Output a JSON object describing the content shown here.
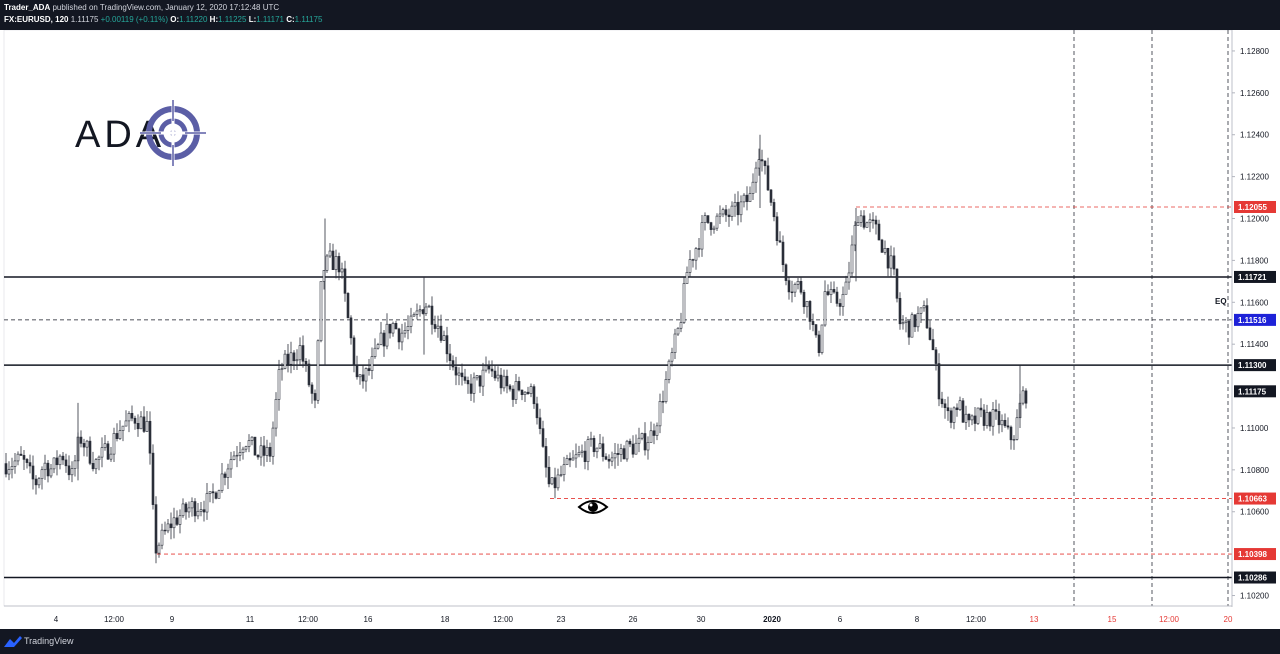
{
  "header": {
    "publisher": "Trader_ADA",
    "published_text": "published on TradingView.com, January 12, 2020 17:12:48 UTC",
    "symbol": "FX:EURUSD, 120",
    "last": "1.11175",
    "change": "+0.00119 (+0.11%)",
    "o_label": "O:",
    "o_value": "1.11220",
    "h_label": "H:",
    "h_value": "1.11225",
    "l_label": "L:",
    "l_value": "1.11171",
    "c_label": "C:",
    "c_value": "1.11175"
  },
  "footer": {
    "brand": "TradingView"
  },
  "logo": {
    "text": "ADA",
    "icon": "crosshair-target-icon",
    "color": "#5b5ea6"
  },
  "colors": {
    "up": "#26a69a",
    "down": "#ef5350",
    "candle": "#2a2e39",
    "red_level": "#e53935",
    "blue_level": "#1e22d8",
    "dark_bg": "#131722"
  },
  "chart_data": {
    "type": "candlestick",
    "symbol": "FX:EURUSD",
    "interval": "120",
    "ylim": [
      1.1015,
      1.129
    ],
    "y_ticks": [
      "1.12800",
      "1.12600",
      "1.12400",
      "1.12200",
      "1.12000",
      "1.11800",
      "1.11600",
      "1.11400",
      "1.11000",
      "1.10800",
      "1.10600",
      "1.10200"
    ],
    "x_ticks": [
      "4",
      "12:00",
      "9",
      "11",
      "12:00",
      "16",
      "18",
      "12:00",
      "23",
      "26",
      "30",
      "2020",
      "6",
      "8",
      "12:00",
      "13",
      "15",
      "12:00",
      "20"
    ],
    "ohlc_anchors_close": [
      [
        0,
        1.1083
      ],
      [
        10,
        1.1083
      ],
      [
        22,
        1.1085
      ],
      [
        35,
        1.1073
      ],
      [
        44,
        1.1083
      ],
      [
        52,
        1.108
      ],
      [
        62,
        1.1088
      ],
      [
        72,
        1.1077
      ],
      [
        80,
        1.1096
      ],
      [
        95,
        1.1083
      ],
      [
        108,
        1.109
      ],
      [
        120,
        1.11
      ],
      [
        135,
        1.1105
      ],
      [
        148,
        1.1101
      ],
      [
        155,
        1.1042
      ],
      [
        172,
        1.1055
      ],
      [
        190,
        1.1062
      ],
      [
        210,
        1.1065
      ],
      [
        230,
        1.1085
      ],
      [
        245,
        1.1095
      ],
      [
        258,
        1.1087
      ],
      [
        270,
        1.1088
      ],
      [
        280,
        1.1128
      ],
      [
        300,
        1.1138
      ],
      [
        315,
        1.111
      ],
      [
        322,
        1.1175
      ],
      [
        330,
        1.118
      ],
      [
        340,
        1.1178
      ],
      [
        350,
        1.1145
      ],
      [
        358,
        1.112
      ],
      [
        370,
        1.1128
      ],
      [
        380,
        1.114
      ],
      [
        392,
        1.115
      ],
      [
        400,
        1.1145
      ],
      [
        410,
        1.1148
      ],
      [
        425,
        1.116
      ],
      [
        440,
        1.1148
      ],
      [
        452,
        1.1132
      ],
      [
        465,
        1.1118
      ],
      [
        478,
        1.1122
      ],
      [
        490,
        1.1128
      ],
      [
        500,
        1.1122
      ],
      [
        512,
        1.1117
      ],
      [
        520,
        1.112
      ],
      [
        535,
        1.1115
      ],
      [
        542,
        1.109
      ],
      [
        550,
        1.107
      ],
      [
        565,
        1.108
      ],
      [
        580,
        1.1087
      ],
      [
        595,
        1.1092
      ],
      [
        610,
        1.1085
      ],
      [
        625,
        1.109
      ],
      [
        640,
        1.1092
      ],
      [
        652,
        1.1097
      ],
      [
        660,
        1.111
      ],
      [
        670,
        1.113
      ],
      [
        680,
        1.115
      ],
      [
        688,
        1.1178
      ],
      [
        695,
        1.1185
      ],
      [
        705,
        1.1198
      ],
      [
        720,
        1.12
      ],
      [
        735,
        1.1203
      ],
      [
        750,
        1.121
      ],
      [
        758,
        1.1235
      ],
      [
        768,
        1.1215
      ],
      [
        775,
        1.12
      ],
      [
        782,
        1.118
      ],
      [
        790,
        1.1168
      ],
      [
        800,
        1.1168
      ],
      [
        810,
        1.1155
      ],
      [
        818,
        1.1135
      ],
      [
        825,
        1.1165
      ],
      [
        835,
        1.116
      ],
      [
        845,
        1.1163
      ],
      [
        852,
        1.1185
      ],
      [
        858,
        1.1203
      ],
      [
        866,
        1.1198
      ],
      [
        875,
        1.1195
      ],
      [
        885,
        1.1185
      ],
      [
        893,
        1.1175
      ],
      [
        900,
        1.115
      ],
      [
        910,
        1.1148
      ],
      [
        918,
        1.1153
      ],
      [
        925,
        1.1155
      ],
      [
        932,
        1.114
      ],
      [
        938,
        1.112
      ],
      [
        948,
        1.1105
      ],
      [
        958,
        1.1112
      ],
      [
        968,
        1.11
      ],
      [
        978,
        1.1105
      ],
      [
        990,
        1.1105
      ],
      [
        1000,
        1.1103
      ],
      [
        1010,
        1.1095
      ],
      [
        1015,
        1.1098
      ],
      [
        1022,
        1.1115
      ],
      [
        1027,
        1.1117
      ]
    ],
    "levels": [
      {
        "price": 1.12055,
        "label": "1.12055",
        "style": "dashed",
        "color": "red"
      },
      {
        "price": 1.11721,
        "label": "1.11721",
        "style": "solid",
        "color": "black"
      },
      {
        "price": 1.11516,
        "label": "1.11516",
        "style": "dashed",
        "color": "blue",
        "annotation": "EQ"
      },
      {
        "price": 1.113,
        "label": "1.11300",
        "style": "solid",
        "color": "black"
      },
      {
        "price": 1.11175,
        "label": "1.11175",
        "style": "current",
        "color": "black"
      },
      {
        "price": 1.10663,
        "label": "1.10663",
        "style": "dashed",
        "color": "red"
      },
      {
        "price": 1.10398,
        "label": "1.10398",
        "style": "dashed",
        "color": "red"
      },
      {
        "price": 1.10286,
        "label": "1.10286",
        "style": "solid",
        "color": "black"
      }
    ],
    "annotations": [
      "EQ",
      "eye-icon"
    ]
  }
}
